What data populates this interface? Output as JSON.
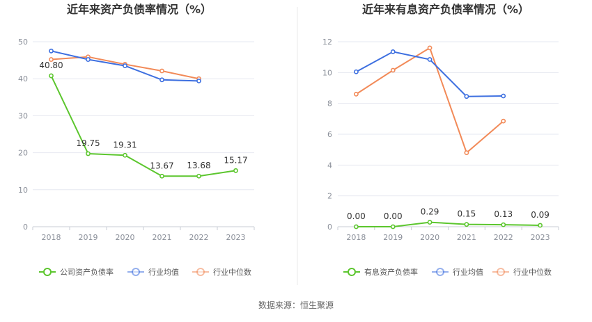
{
  "footer": {
    "source": "数据来源：恒生聚源"
  },
  "colors": {
    "company": "#5cc62e",
    "industry_avg": "#3d6fe0",
    "industry_median": "#f28a58",
    "grid": "#e6e8f0",
    "axis": "#c9ccd4",
    "tick_text": "#8a8f99",
    "title": "#333333",
    "divider": "#e8e8e8"
  },
  "chart_data": [
    {
      "type": "line",
      "title": "近年来资产负债率情况（%）",
      "categories": [
        "2018",
        "2019",
        "2020",
        "2021",
        "2022",
        "2023"
      ],
      "ylim": [
        0,
        50
      ],
      "yticks": [
        0,
        10,
        20,
        30,
        40,
        50
      ],
      "grid": true,
      "legend_position": "bottom",
      "series": [
        {
          "name": "公司资产负债率",
          "key": "company",
          "values": [
            40.8,
            19.75,
            19.31,
            13.67,
            13.68,
            15.17
          ],
          "labels": [
            "40.80",
            "19.75",
            "19.31",
            "13.67",
            "13.68",
            "15.17"
          ]
        },
        {
          "name": "行业均值",
          "key": "industry_avg",
          "values": [
            47.5,
            45.2,
            43.5,
            39.7,
            39.4,
            null
          ]
        },
        {
          "name": "行业中位数",
          "key": "industry_median",
          "values": [
            45.2,
            45.9,
            43.9,
            42.1,
            40.0,
            null
          ]
        }
      ]
    },
    {
      "type": "line",
      "title": "近年来有息资产负债率情况（%）",
      "categories": [
        "2018",
        "2019",
        "2020",
        "2021",
        "2022",
        "2023"
      ],
      "ylim": [
        0,
        12
      ],
      "yticks": [
        0,
        2,
        4,
        6,
        8,
        10,
        12
      ],
      "grid": true,
      "legend_position": "bottom",
      "series": [
        {
          "name": "有息资产负债率",
          "key": "company",
          "values": [
            0.0,
            0.0,
            0.29,
            0.15,
            0.13,
            0.09
          ],
          "labels": [
            "0.00",
            "0.00",
            "0.29",
            "0.15",
            "0.13",
            "0.09"
          ]
        },
        {
          "name": "行业均值",
          "key": "industry_avg",
          "values": [
            10.05,
            11.35,
            10.85,
            8.45,
            8.48,
            null
          ]
        },
        {
          "name": "行业中位数",
          "key": "industry_median",
          "values": [
            8.6,
            10.15,
            11.6,
            4.8,
            6.85,
            null
          ]
        }
      ]
    }
  ]
}
